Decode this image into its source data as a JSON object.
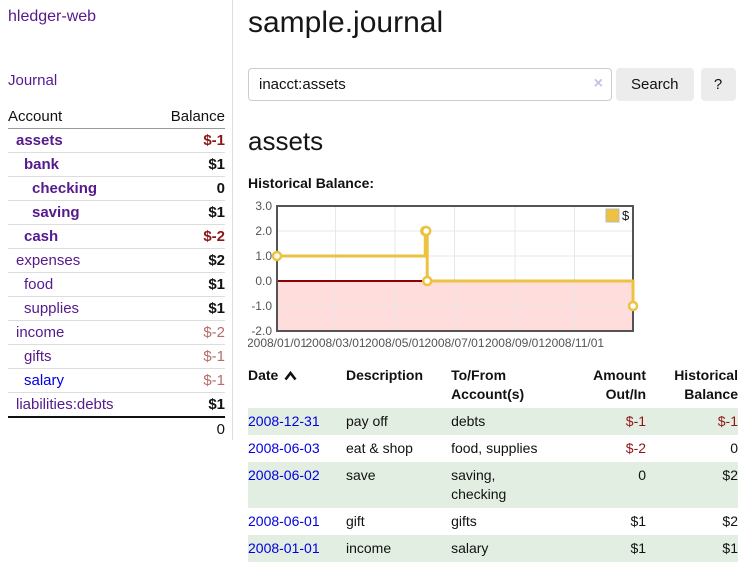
{
  "sidebar": {
    "brand": "hledger-web",
    "nav_journal": "Journal",
    "accounts_table": {
      "headers": [
        "Account",
        "Balance"
      ],
      "rows": [
        {
          "account": "assets",
          "balance": "$-1",
          "indent": 1,
          "bold": true
        },
        {
          "account": "bank",
          "balance": "$1",
          "indent": 2,
          "bold": true
        },
        {
          "account": "checking",
          "balance": "0",
          "indent": 3,
          "bold": true
        },
        {
          "account": "saving",
          "balance": "$1",
          "indent": 3,
          "bold": true
        },
        {
          "account": "cash",
          "balance": "$-2",
          "indent": 2,
          "bold": true
        },
        {
          "account": "expenses",
          "balance": "$2",
          "indent": 1,
          "bold": false
        },
        {
          "account": "food",
          "balance": "$1",
          "indent": 2,
          "bold": false
        },
        {
          "account": "supplies",
          "balance": "$1",
          "indent": 2,
          "bold": false
        },
        {
          "account": "income",
          "balance": "$-2",
          "indent": 1,
          "bold": false
        },
        {
          "account": "gifts",
          "balance": "$-1",
          "indent": 2,
          "bold": false
        },
        {
          "account": "salary",
          "balance": "$-1",
          "indent": 2,
          "bold": false,
          "link_blue": true
        },
        {
          "account": "liabilities:debts",
          "balance": "$1",
          "indent": 1,
          "bold": false
        }
      ],
      "total": "0"
    }
  },
  "header": {
    "title": "sample.journal"
  },
  "search": {
    "value": "inacct:assets",
    "clear_icon": "×",
    "button": "Search",
    "help_button": "?"
  },
  "account_page": {
    "title": "assets"
  },
  "chart_data": {
    "type": "line",
    "step": true,
    "title": "Historical Balance:",
    "x": [
      "2008-01-01",
      "2008-06-01",
      "2008-06-02",
      "2008-06-03",
      "2008-12-31"
    ],
    "series": [
      {
        "name": "$",
        "color": "#EDC240",
        "values": [
          1,
          2,
          2,
          0,
          -1
        ]
      }
    ],
    "x_ticks": [
      "2008/01/01",
      "2008/03/01",
      "2008/05/01",
      "2008/07/01",
      "2008/09/01",
      "2008/11/01"
    ],
    "y_ticks": [
      3.0,
      2.0,
      1.0,
      0.0,
      -1.0,
      -2.0
    ],
    "xlim": [
      "2008-01-01",
      "2008-12-31"
    ],
    "ylim": [
      -2,
      3
    ],
    "grid": true,
    "legend_position": "top-right",
    "negative_region_color": "#ffdddd",
    "zero_line_color": "#8b0000",
    "border_color": "#545454",
    "tick_label_color": "#545454"
  },
  "register": {
    "headers": {
      "date": "Date",
      "description": "Description",
      "tofrom": "To/From\nAccount(s)",
      "amount": "Amount\nOut/In",
      "balance": "Historical\nBalance"
    },
    "rows": [
      {
        "date": "2008-12-31",
        "description": "pay off",
        "accounts": "debts",
        "amount": "$-1",
        "balance": "$-1"
      },
      {
        "date": "2008-06-03",
        "description": "eat & shop",
        "accounts": "food, supplies",
        "amount": "$-2",
        "balance": "0"
      },
      {
        "date": "2008-06-02",
        "description": "save",
        "accounts": "saving,\nchecking",
        "amount": "0",
        "balance": "$2"
      },
      {
        "date": "2008-06-01",
        "description": "gift",
        "accounts": "gifts",
        "amount": "$1",
        "balance": "$2"
      },
      {
        "date": "2008-01-01",
        "description": "income",
        "accounts": "salary",
        "amount": "$1",
        "balance": "$1"
      }
    ]
  },
  "colors": {
    "link_purple": "#551a8b",
    "link_blue": "#0000e0",
    "date_link_blue": "#0000dd",
    "negative_strong": "#8e1616",
    "negative_muted": "#b86b6b",
    "row_stripe_green": "#e3eee3",
    "series_yellow": "#EDC240",
    "negative_region_pink": "#ffdddd",
    "zero_line_red": "#8b0000"
  }
}
